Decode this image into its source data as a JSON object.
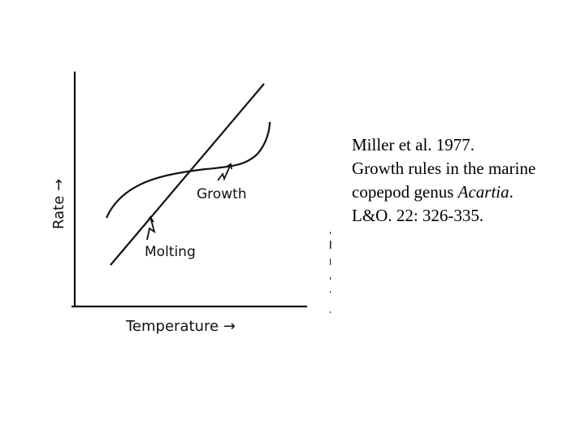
{
  "chart_data": {
    "type": "line",
    "xlabel": "Temperature →",
    "ylabel": "Rate →",
    "series": [
      {
        "name": "Molting",
        "shape": "straight line",
        "x": [
          0.0,
          1.0
        ],
        "y": [
          0.0,
          1.0
        ]
      },
      {
        "name": "Growth",
        "shape": "sigmoid curve",
        "x": [
          0.0,
          0.33,
          0.67,
          1.0
        ],
        "y": [
          0.25,
          0.5,
          0.6,
          0.8
        ]
      }
    ],
    "annotations": [
      "Molting",
      "Growth"
    ],
    "grid": false,
    "legend": "none"
  },
  "citation": {
    "line1": "Miller et al. 1977.",
    "line2": "Growth rules in the marine",
    "line3_text": "copepod genus ",
    "line3_italic": "Acartia",
    "line3_end": ".",
    "line4": "L&O. 22: 326-335."
  },
  "colors": {
    "ink": "#111111",
    "background": "#ffffff"
  }
}
